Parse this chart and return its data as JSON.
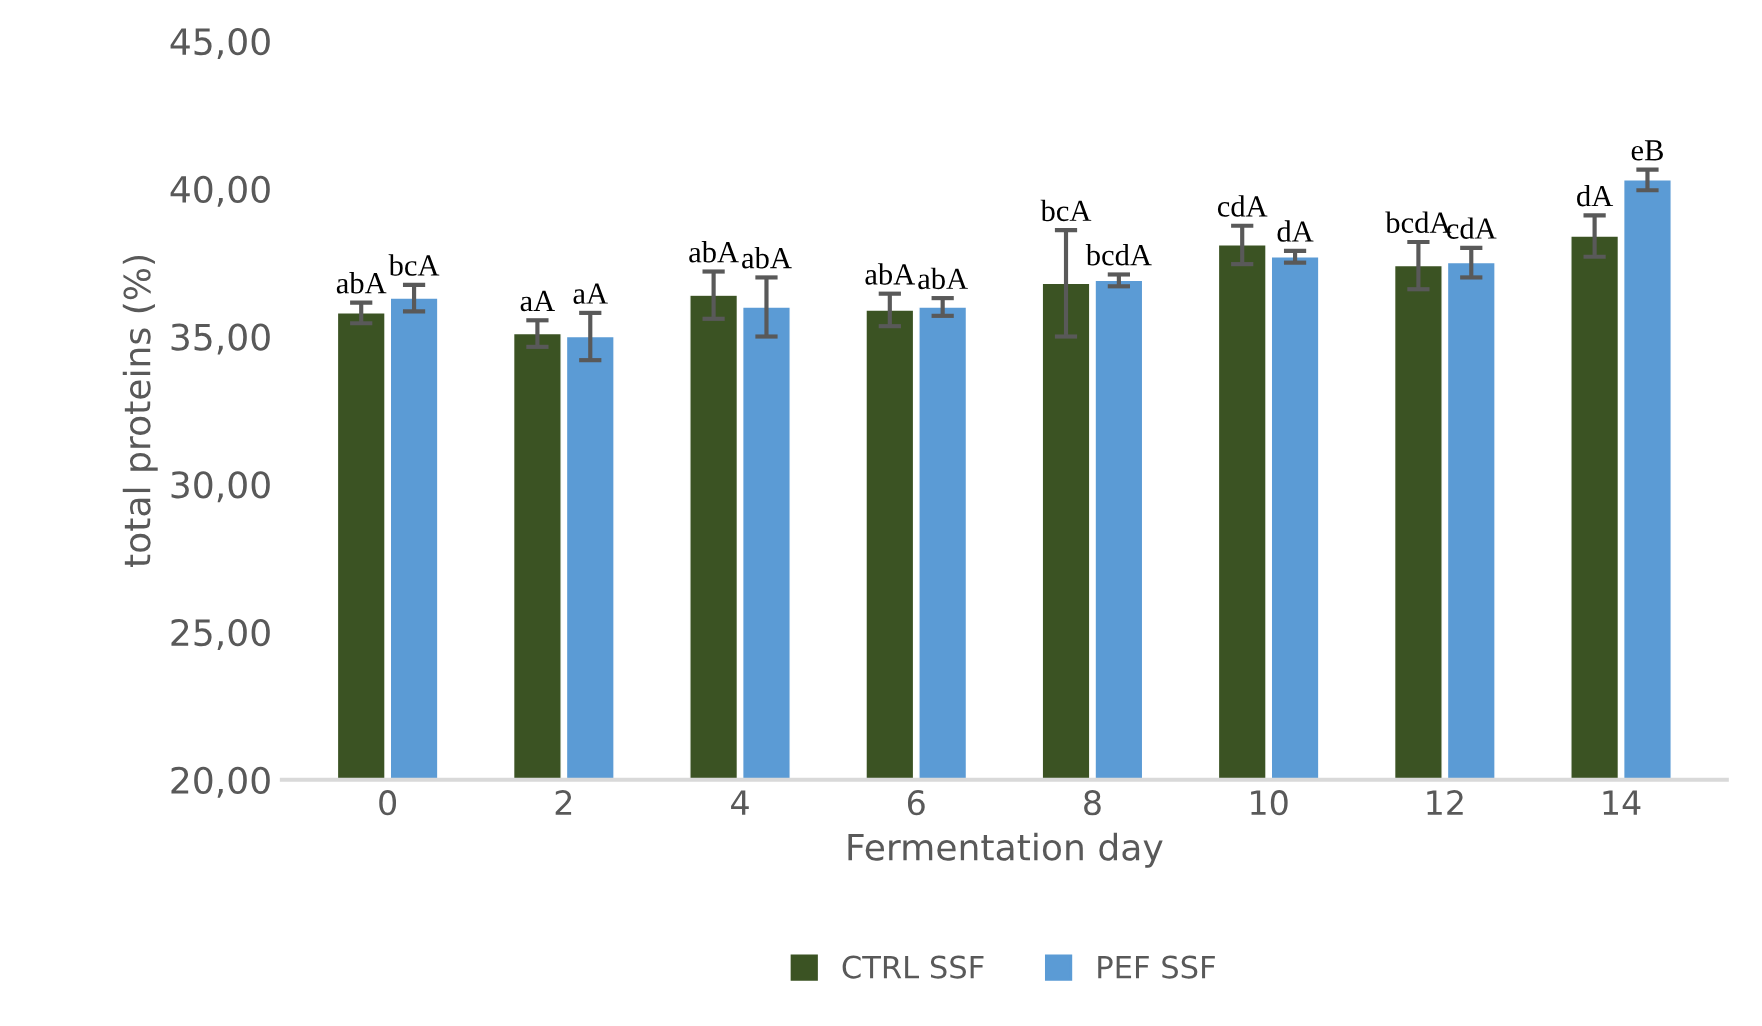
{
  "chart_data": {
    "type": "bar",
    "xlabel": "Fermentation day",
    "ylabel": "total proteins (%)",
    "categories": [
      "0",
      "2",
      "4",
      "6",
      "8",
      "10",
      "12",
      "14"
    ],
    "series": [
      {
        "name": "CTRL SSF",
        "color": "#3b5323",
        "values": [
          35.8,
          35.1,
          36.4,
          35.9,
          36.8,
          38.1,
          37.4,
          38.4
        ],
        "errors": [
          0.35,
          0.45,
          0.8,
          0.55,
          1.8,
          0.65,
          0.8,
          0.7
        ],
        "value_labels": [
          "abA",
          "aA",
          "abA",
          "abA",
          "bcA",
          "cdA",
          "bcdA",
          "dA"
        ]
      },
      {
        "name": "PEF SSF",
        "color": "#5b9bd5",
        "values": [
          36.3,
          35.0,
          36.0,
          36.0,
          36.9,
          37.7,
          37.5,
          40.3
        ],
        "errors": [
          0.45,
          0.8,
          1.0,
          0.3,
          0.2,
          0.2,
          0.5,
          0.35
        ],
        "value_labels": [
          "bcA",
          "aA",
          "abA",
          "abA",
          "bcdA",
          "dA",
          "cdA",
          "eB"
        ]
      }
    ],
    "ylim": [
      20,
      45
    ],
    "yticks": [
      {
        "value": 20,
        "label": "20,00"
      },
      {
        "value": 25,
        "label": "25,00"
      },
      {
        "value": 30,
        "label": "30,00"
      },
      {
        "value": 35,
        "label": "35,00"
      },
      {
        "value": 40,
        "label": "40,00"
      },
      {
        "value": 45,
        "label": "45,00"
      }
    ],
    "legend": "bottom"
  }
}
